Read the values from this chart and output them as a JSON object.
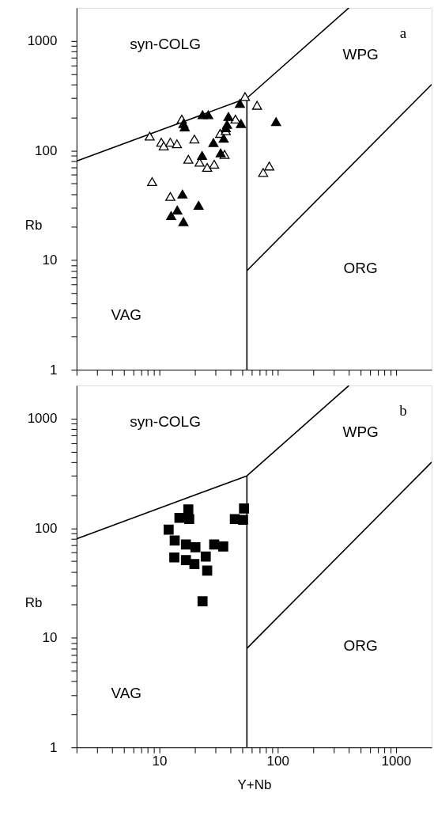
{
  "chart_data": [
    {
      "type": "scatter",
      "ylabel": "Rb",
      "log": "xy",
      "grid": false,
      "tick_labels": "y",
      "xlim": [
        2,
        2000
      ],
      "ylim": [
        1,
        2000
      ],
      "xticks": [
        {
          "value": 2,
          "label": null
        },
        {
          "value": 3,
          "label": null
        },
        {
          "value": 4,
          "label": null
        },
        {
          "value": 5,
          "label": null
        },
        {
          "value": 6,
          "label": null
        },
        {
          "value": 7,
          "label": null
        },
        {
          "value": 8,
          "label": null
        },
        {
          "value": 9,
          "label": null
        },
        10,
        {
          "value": 20,
          "label": null
        },
        {
          "value": 30,
          "label": null
        },
        {
          "value": 40,
          "label": null
        },
        {
          "value": 50,
          "label": null
        },
        {
          "value": 60,
          "label": null
        },
        {
          "value": 70,
          "label": null
        },
        {
          "value": 80,
          "label": null
        },
        {
          "value": 90,
          "label": null
        },
        100,
        {
          "value": 200,
          "label": null
        },
        {
          "value": 300,
          "label": null
        },
        {
          "value": 400,
          "label": null
        },
        {
          "value": 500,
          "label": null
        },
        {
          "value": 600,
          "label": null
        },
        {
          "value": 700,
          "label": null
        },
        {
          "value": 800,
          "label": null
        },
        {
          "value": 900,
          "label": null
        },
        1000
      ],
      "yticks": [
        1,
        {
          "value": 2,
          "label": null
        },
        {
          "value": 3,
          "label": null
        },
        {
          "value": 4,
          "label": null
        },
        {
          "value": 5,
          "label": null
        },
        {
          "value": 6,
          "label": null
        },
        {
          "value": 7,
          "label": null
        },
        {
          "value": 8,
          "label": null
        },
        {
          "value": 9,
          "label": null
        },
        10,
        {
          "value": 20,
          "label": null
        },
        {
          "value": 30,
          "label": null
        },
        {
          "value": 40,
          "label": null
        },
        {
          "value": 50,
          "label": null
        },
        {
          "value": 60,
          "label": null
        },
        {
          "value": 70,
          "label": null
        },
        {
          "value": 80,
          "label": null
        },
        {
          "value": 90,
          "label": null
        },
        100,
        {
          "value": 200,
          "label": null
        },
        {
          "value": 300,
          "label": null
        },
        {
          "value": 400,
          "label": null
        },
        {
          "value": 500,
          "label": null
        },
        {
          "value": 600,
          "label": null
        },
        {
          "value": 700,
          "label": null
        },
        {
          "value": 800,
          "label": null
        },
        {
          "value": 900,
          "label": null
        },
        1000
      ],
      "series": [
        {
          "type": "line",
          "color": "#000000",
          "marker": "none",
          "x": [
            2,
            55,
            400
          ],
          "values": [
            80,
            300,
            2000
          ]
        },
        {
          "type": "line",
          "color": "#000000",
          "marker": "none",
          "x": [
            55,
            55
          ],
          "values": [
            1,
            300
          ]
        },
        {
          "type": "line",
          "color": "#000000",
          "marker": "none",
          "x": [
            55,
            2000
          ],
          "values": [
            8,
            400
          ]
        },
        {
          "color": "#ffffff",
          "marker": "triangle",
          "x": [
            53,
            67,
            15.5,
            8.3,
            10.4,
            10.9,
            12.4,
            14.1,
            19.8,
            17.6,
            21.9,
            25.4,
            29.1,
            8.7,
            12.4,
            75.5,
            85,
            44,
            32.7,
            36.5,
            35.6
          ],
          "values": [
            310,
            258,
            193,
            135,
            119,
            110,
            119,
            115,
            127,
            83,
            78,
            70,
            75,
            52,
            38,
            63,
            72,
            193,
            143,
            151,
            92
          ]
        },
        {
          "color": "#000000",
          "marker": "triangle",
          "x": [
            48,
            23.2,
            25.9,
            16.4,
            16,
            38.4,
            37.4,
            49,
            35,
            28.7,
            23,
            33,
            97,
            15.7,
            21.5,
            14.2,
            12.6,
            16,
            36.5
          ],
          "values": [
            268,
            212,
            212,
            164,
            176,
            204,
            173,
            176,
            129,
            118,
            90,
            95,
            183,
            40,
            31.6,
            28.6,
            25.4,
            22.4,
            161
          ]
        }
      ],
      "annotations": [
        "syn-COLG",
        "WPG",
        "VAG",
        "ORG",
        "a"
      ]
    },
    {
      "type": "scatter",
      "xlabel": "Y+Nb",
      "ylabel": "Rb",
      "log": "xy",
      "grid": false,
      "xlim": [
        2,
        2000
      ],
      "ylim": [
        1,
        2000
      ],
      "xticks": [
        {
          "value": 2,
          "label": null
        },
        {
          "value": 3,
          "label": null
        },
        {
          "value": 4,
          "label": null
        },
        {
          "value": 5,
          "label": null
        },
        {
          "value": 6,
          "label": null
        },
        {
          "value": 7,
          "label": null
        },
        {
          "value": 8,
          "label": null
        },
        {
          "value": 9,
          "label": null
        },
        10,
        {
          "value": 20,
          "label": null
        },
        {
          "value": 30,
          "label": null
        },
        {
          "value": 40,
          "label": null
        },
        {
          "value": 50,
          "label": null
        },
        {
          "value": 60,
          "label": null
        },
        {
          "value": 70,
          "label": null
        },
        {
          "value": 80,
          "label": null
        },
        {
          "value": 90,
          "label": null
        },
        100,
        {
          "value": 200,
          "label": null
        },
        {
          "value": 300,
          "label": null
        },
        {
          "value": 400,
          "label": null
        },
        {
          "value": 500,
          "label": null
        },
        {
          "value": 600,
          "label": null
        },
        {
          "value": 700,
          "label": null
        },
        {
          "value": 800,
          "label": null
        },
        {
          "value": 900,
          "label": null
        },
        1000
      ],
      "yticks": [
        1,
        {
          "value": 2,
          "label": null
        },
        {
          "value": 3,
          "label": null
        },
        {
          "value": 4,
          "label": null
        },
        {
          "value": 5,
          "label": null
        },
        {
          "value": 6,
          "label": null
        },
        {
          "value": 7,
          "label": null
        },
        {
          "value": 8,
          "label": null
        },
        {
          "value": 9,
          "label": null
        },
        10,
        {
          "value": 20,
          "label": null
        },
        {
          "value": 30,
          "label": null
        },
        {
          "value": 40,
          "label": null
        },
        {
          "value": 50,
          "label": null
        },
        {
          "value": 60,
          "label": null
        },
        {
          "value": 70,
          "label": null
        },
        {
          "value": 80,
          "label": null
        },
        {
          "value": 90,
          "label": null
        },
        100,
        {
          "value": 200,
          "label": null
        },
        {
          "value": 300,
          "label": null
        },
        {
          "value": 400,
          "label": null
        },
        {
          "value": 500,
          "label": null
        },
        {
          "value": 600,
          "label": null
        },
        {
          "value": 700,
          "label": null
        },
        {
          "value": 800,
          "label": null
        },
        {
          "value": 900,
          "label": null
        },
        1000
      ],
      "series": [
        {
          "type": "line",
          "color": "#000000",
          "marker": "none",
          "x": [
            2,
            55,
            400
          ],
          "values": [
            80,
            300,
            2000
          ]
        },
        {
          "type": "line",
          "color": "#000000",
          "marker": "none",
          "x": [
            55,
            55
          ],
          "values": [
            1,
            300
          ]
        },
        {
          "type": "line",
          "color": "#000000",
          "marker": "none",
          "x": [
            55,
            2000
          ],
          "values": [
            8,
            400
          ]
        },
        {
          "color": "#000000",
          "marker": "square",
          "x": [
            52,
            51,
            43.5,
            17.6,
            17.9,
            14.8,
            12,
            13.5,
            16.8,
            20.2,
            29.1,
            34.7,
            13.4,
            16.8,
            19.8,
            24.7,
            25.4,
            23.2
          ],
          "values": [
            151,
            119,
            121,
            148,
            121,
            124,
            97,
            77,
            71,
            67,
            71,
            68,
            54,
            51,
            47,
            55,
            41,
            21.5
          ]
        }
      ],
      "annotations": [
        "syn-COLG",
        "WPG",
        "VAG",
        "ORG",
        "b"
      ]
    }
  ]
}
